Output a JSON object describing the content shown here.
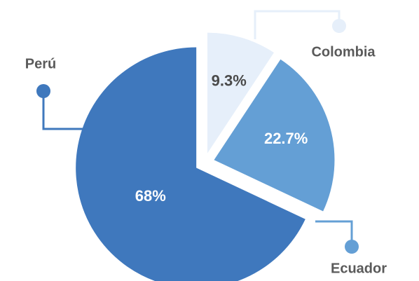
{
  "chart_data": {
    "type": "pie",
    "categories": [
      "Perú",
      "Ecuador",
      "Colombia"
    ],
    "values": [
      68,
      22.7,
      9.3
    ],
    "value_labels": [
      "68%",
      "22.7%",
      "9.3%"
    ],
    "colors": [
      "#3f78bd",
      "#649fd5",
      "#e6effa"
    ]
  }
}
